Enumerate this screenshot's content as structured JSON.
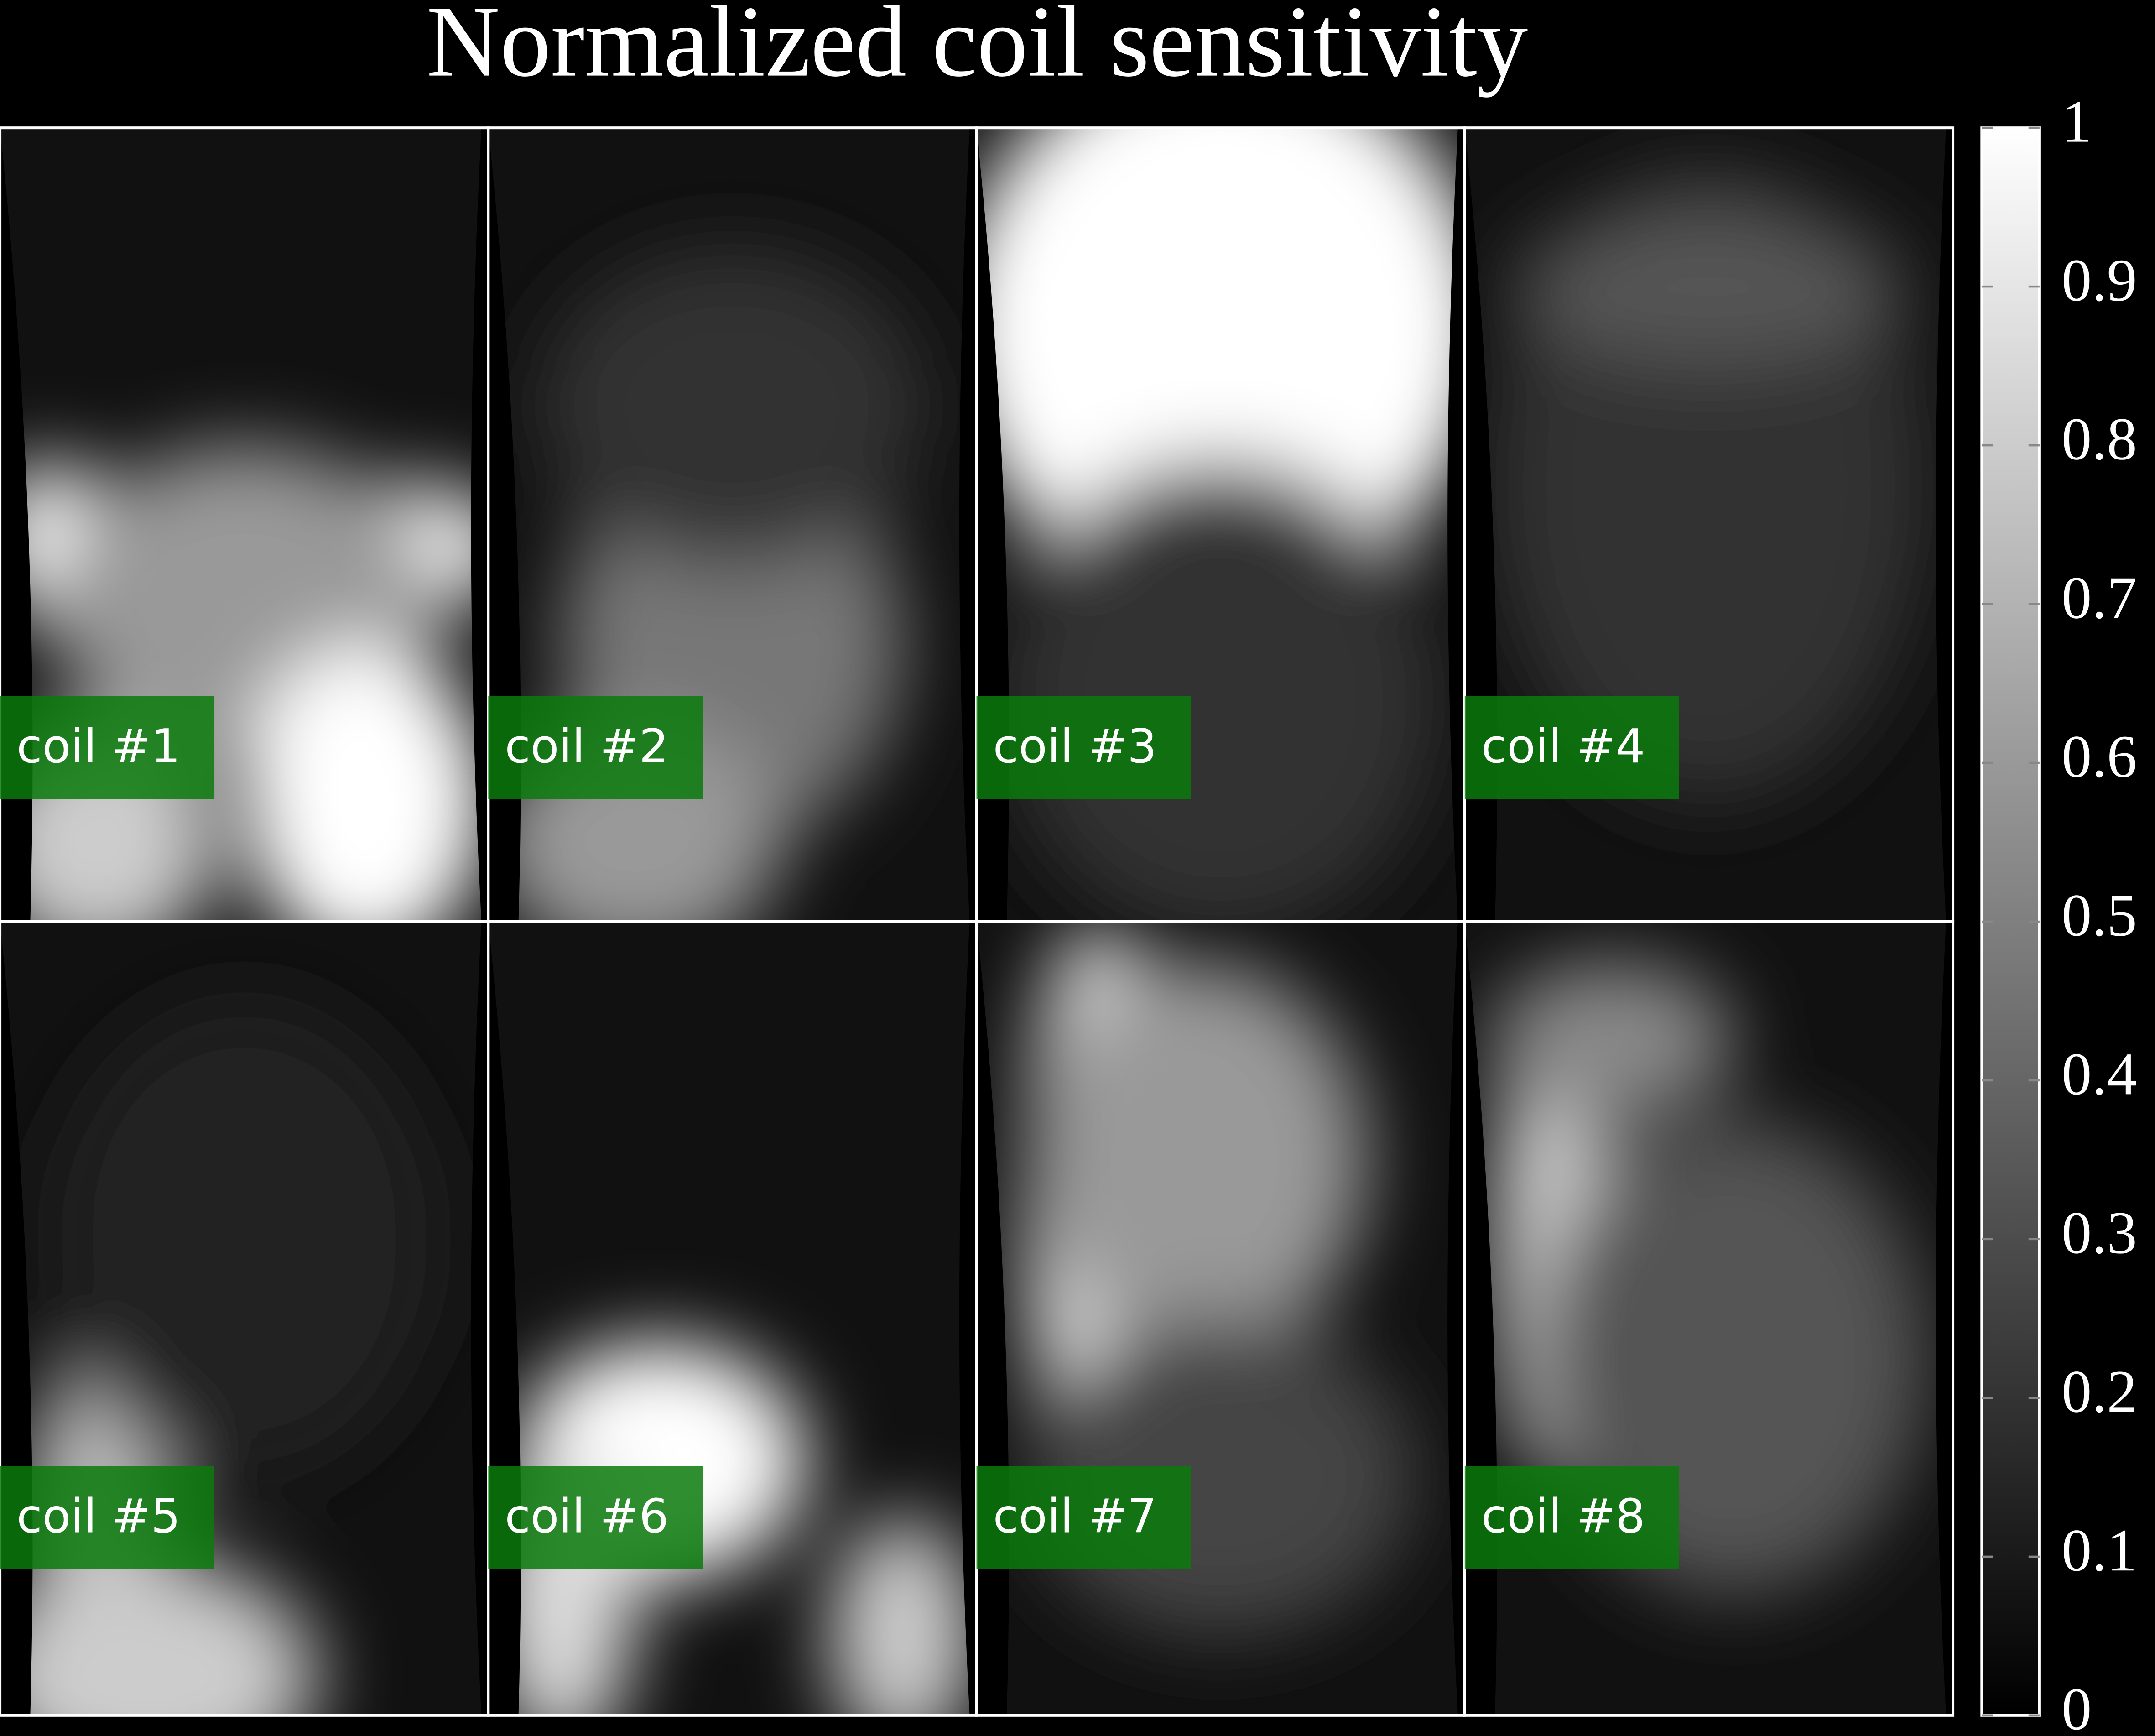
{
  "chart_data": {
    "type": "image-grid",
    "title": "Normalized coil sensitivity",
    "panels": [
      "coil #1",
      "coil #2",
      "coil #3",
      "coil #4",
      "coil #5",
      "coil #6",
      "coil #7",
      "coil #8"
    ],
    "clim": [
      0,
      1
    ],
    "colorbar_ticks": [
      0,
      0.1,
      0.2,
      0.3,
      0.4,
      0.5,
      0.6,
      0.7,
      0.8,
      0.9,
      1
    ]
  }
}
